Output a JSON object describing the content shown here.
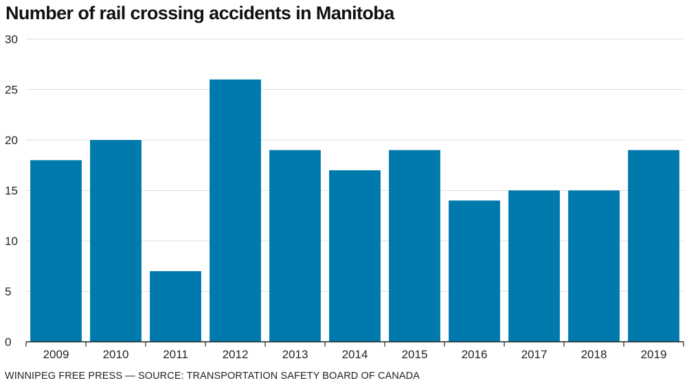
{
  "title": "Number of rail crossing accidents in Manitoba",
  "source": "WINNIPEG FREE PRESS — SOURCE: TRANSPORTATION SAFETY BOARD OF CANADA",
  "colors": {
    "bar": "#0079ad",
    "grid": "#dddddd",
    "axis": "#222222"
  },
  "chart_data": {
    "type": "bar",
    "title": "Number of rail crossing accidents in Manitoba",
    "xlabel": "",
    "ylabel": "",
    "categories": [
      "2009",
      "2010",
      "2011",
      "2012",
      "2013",
      "2014",
      "2015",
      "2016",
      "2017",
      "2018",
      "2019"
    ],
    "values": [
      18,
      20,
      7,
      26,
      19,
      17,
      19,
      14,
      15,
      15,
      19
    ],
    "ylim": [
      0,
      30
    ],
    "yticks": [
      0,
      5,
      10,
      15,
      20,
      25,
      30
    ],
    "grid": true,
    "legend": "none"
  }
}
